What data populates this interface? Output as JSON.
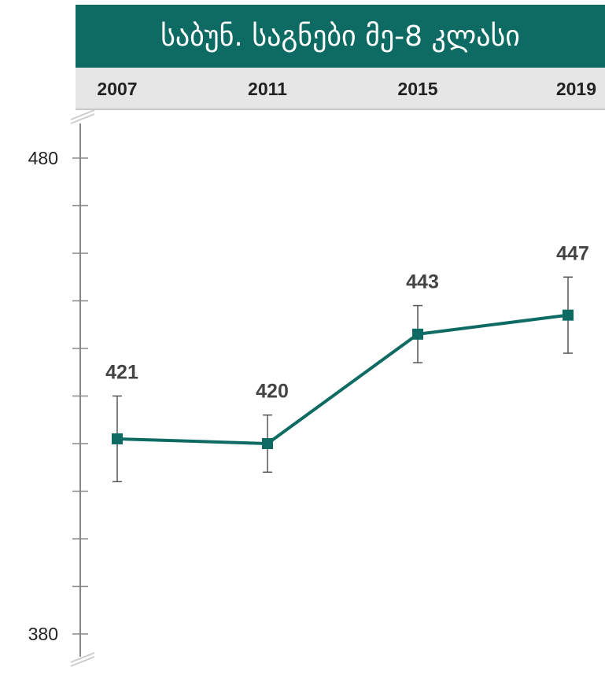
{
  "chart_data": {
    "type": "line",
    "title": "საბუნ. საგნები მე-8 კლასი",
    "categories": [
      "2007",
      "2011",
      "2015",
      "2019"
    ],
    "series": [
      {
        "values": [
          421,
          420,
          443,
          447
        ],
        "error_low": [
          412,
          414,
          437,
          439
        ],
        "error_high": [
          430,
          426,
          449,
          455
        ],
        "data_labels": [
          "421",
          "420",
          "443",
          "447"
        ]
      }
    ],
    "ylim": [
      380,
      480
    ],
    "yticks": [
      380,
      390,
      400,
      410,
      420,
      430,
      440,
      450,
      460,
      470,
      480
    ],
    "ytick_labels": [
      "380",
      "480"
    ],
    "axis_break": true,
    "grid": false,
    "colors": {
      "series": "#0e6b63",
      "header": "#0e6b63",
      "year_band": "#e6e6e6",
      "axis": "#888888",
      "error_bar": "#555555"
    }
  }
}
